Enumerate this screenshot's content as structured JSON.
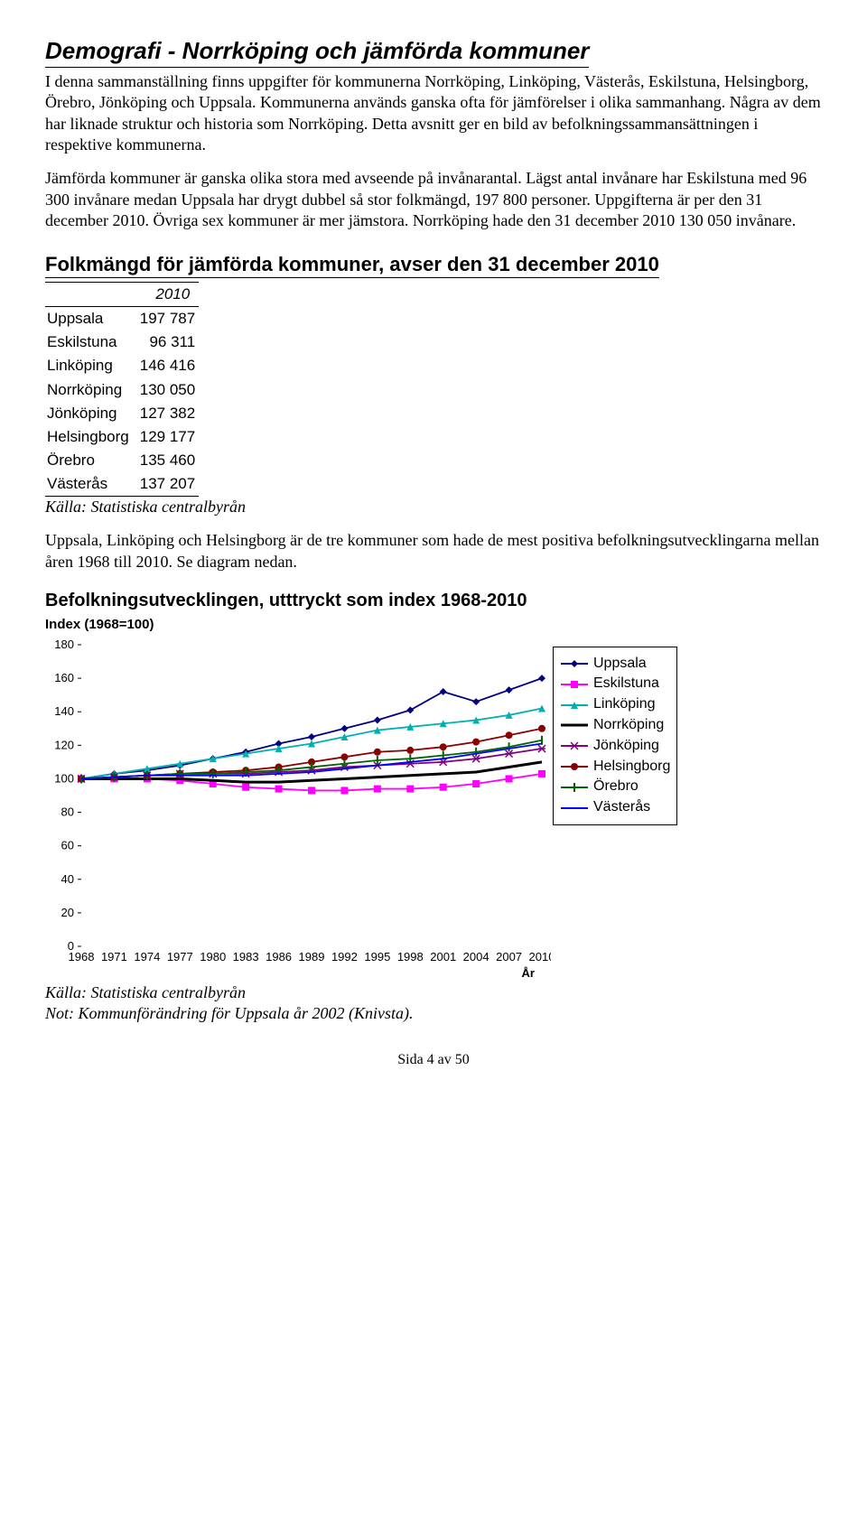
{
  "title": "Demografi - Norrköping och jämförda kommuner",
  "para1": "I denna sammanställning finns uppgifter för kommunerna Norrköping, Linköping, Västerås, Eskilstuna, Helsingborg, Örebro, Jönköping och Uppsala. Kommunerna används ganska ofta för jämförelser i olika sammanhang. Några av dem har liknade struktur och historia som Norrköping. Detta avsnitt ger en bild av befolkningssammansättningen i respektive kommunerna.",
  "para2": "Jämförda kommuner är ganska olika stora med avseende på invånarantal. Lägst antal invånare har Eskilstuna med 96 300 invånare medan Uppsala har drygt dubbel så stor folkmängd, 197 800 personer. Uppgifterna är per den 31 december 2010. Övriga sex kommuner är mer jämstora. Norrköping hade den 31 december 2010 130 050 invånare.",
  "table_title": "Folkmängd för jämförda kommuner, avser den 31 december 2010",
  "table": {
    "year": "2010",
    "rows": [
      {
        "name": "Uppsala",
        "value": "197 787"
      },
      {
        "name": "Eskilstuna",
        "value": "96 311"
      },
      {
        "name": "Linköping",
        "value": "146 416"
      },
      {
        "name": "Norrköping",
        "value": "130 050"
      },
      {
        "name": "Jönköping",
        "value": "127 382"
      },
      {
        "name": "Helsingborg",
        "value": "129 177"
      },
      {
        "name": "Örebro",
        "value": "135 460"
      },
      {
        "name": "Västerås",
        "value": "137 207"
      }
    ],
    "source": "Källa: Statistiska centralbyrån"
  },
  "para3": "Uppsala, Linköping och Helsingborg är de tre kommuner som hade de mest positiva befolkningsutvecklingarna mellan åren 1968 till 2010. Se diagram nedan.",
  "chart": {
    "type": "line",
    "title": "Befolkningsutvecklingen, utttryckt som index 1968-2010",
    "y_axis_label": "Index (1968=100)",
    "x_axis_label": "År",
    "yticks": [
      0,
      20,
      40,
      60,
      80,
      100,
      120,
      140,
      160,
      180
    ],
    "ylim": [
      0,
      180
    ],
    "xticks": [
      1968,
      1971,
      1974,
      1977,
      1980,
      1983,
      1986,
      1989,
      1992,
      1995,
      1998,
      2001,
      2004,
      2007,
      2010
    ],
    "xlim": [
      1968,
      2010
    ],
    "background_color": "#ffffff",
    "series": [
      {
        "name": "Uppsala",
        "color": "#000080",
        "marker": "diamond",
        "values": [
          100,
          103,
          105,
          108,
          112,
          116,
          121,
          125,
          130,
          135,
          141,
          152,
          146,
          153,
          160
        ]
      },
      {
        "name": "Eskilstuna",
        "color": "#ff00ff",
        "marker": "square",
        "values": [
          100,
          100,
          100,
          99,
          97,
          95,
          94,
          93,
          93,
          94,
          94,
          95,
          97,
          100,
          103
        ]
      },
      {
        "name": "Linköping",
        "color": "#00b0b0",
        "marker": "triangle",
        "values": [
          100,
          103,
          106,
          109,
          112,
          115,
          118,
          121,
          125,
          129,
          131,
          133,
          135,
          138,
          142
        ]
      },
      {
        "name": "Norrköping",
        "color": "#000000",
        "marker": "none",
        "thick": true,
        "values": [
          100,
          100,
          100,
          100,
          99,
          98,
          98,
          99,
          100,
          101,
          102,
          103,
          104,
          107,
          110
        ]
      },
      {
        "name": "Jönköping",
        "color": "#800080",
        "marker": "star",
        "values": [
          100,
          101,
          102,
          103,
          103,
          103,
          104,
          105,
          107,
          108,
          109,
          110,
          112,
          115,
          118
        ]
      },
      {
        "name": "Helsingborg",
        "color": "#8b0000",
        "marker": "circle",
        "values": [
          100,
          101,
          102,
          103,
          104,
          105,
          107,
          110,
          113,
          116,
          117,
          119,
          122,
          126,
          130
        ]
      },
      {
        "name": "Örebro",
        "color": "#006400",
        "marker": "bar",
        "values": [
          100,
          101,
          102,
          103,
          103,
          104,
          105,
          107,
          109,
          111,
          112,
          114,
          116,
          119,
          123
        ]
      },
      {
        "name": "Västerås",
        "color": "#0000ff",
        "marker": "none",
        "values": [
          100,
          101,
          102,
          102,
          102,
          102,
          103,
          104,
          106,
          108,
          110,
          112,
          115,
          118,
          121
        ]
      }
    ]
  },
  "chart_source": "Källa: Statistiska centralbyrån",
  "chart_note": "Not: Kommunförändring för Uppsala år 2002 (Knivsta).",
  "footer": "Sida 4 av 50"
}
